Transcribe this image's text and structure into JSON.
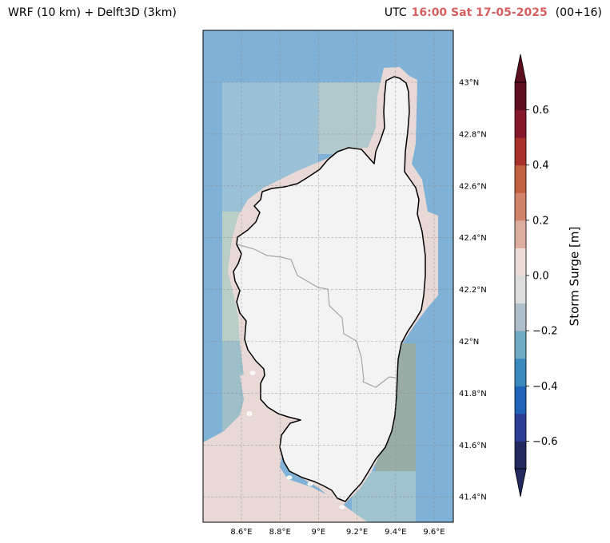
{
  "title_left": "WRF (10 km) + Delft3D (3km)",
  "title_right": {
    "prefix": "UTC",
    "timestamp": "16:00 Sat 17-05-2025",
    "lead": "(00+16)",
    "timestamp_color": "#d65f5f"
  },
  "map": {
    "lon_range": [
      8.4,
      9.7
    ],
    "lat_range": [
      41.3,
      43.2
    ],
    "lon_ticks": [
      {
        "value": 8.6,
        "label": "8.6°E"
      },
      {
        "value": 8.8,
        "label": "8.8°E"
      },
      {
        "value": 9.0,
        "label": "9°E"
      },
      {
        "value": 9.2,
        "label": "9.2°E"
      },
      {
        "value": 9.4,
        "label": "9.4°E"
      },
      {
        "value": 9.6,
        "label": "9.6°E"
      }
    ],
    "lat_ticks": [
      {
        "value": 43.0,
        "label": "43°N"
      },
      {
        "value": 42.8,
        "label": "42.8°N"
      },
      {
        "value": 42.6,
        "label": "42.6°N"
      },
      {
        "value": 42.4,
        "label": "42.4°N"
      },
      {
        "value": 42.2,
        "label": "42.2°N"
      },
      {
        "value": 42.0,
        "label": "42°N"
      },
      {
        "value": 41.8,
        "label": "41.8°N"
      },
      {
        "value": 41.6,
        "label": "41.6°N"
      },
      {
        "value": 41.4,
        "label": "41.4°N"
      }
    ],
    "land_color": "#f3f3f3",
    "sea_color": "#7fb2d6",
    "gridlines": true
  },
  "colorbar": {
    "label": "Storm Surge [m]",
    "min": -0.7,
    "max": 0.7,
    "step": 0.1,
    "extend": "both",
    "colors": [
      "#23295e",
      "#2e3d98",
      "#1f64b8",
      "#3a8abf",
      "#71aac3",
      "#aebfca",
      "#dcdcdc",
      "#ecdcd8",
      "#ddaea0",
      "#d1846a",
      "#c0603f",
      "#a8322b",
      "#84172b",
      "#5d0e1f"
    ],
    "ticks": [
      {
        "value": 0.6,
        "label": "0.6"
      },
      {
        "value": 0.4,
        "label": "0.4"
      },
      {
        "value": 0.2,
        "label": "0.2"
      },
      {
        "value": 0.0,
        "label": "0.0"
      },
      {
        "value": -0.2,
        "label": "−0.2"
      },
      {
        "value": -0.4,
        "label": "−0.4"
      },
      {
        "value": -0.6,
        "label": "−0.6"
      }
    ]
  }
}
